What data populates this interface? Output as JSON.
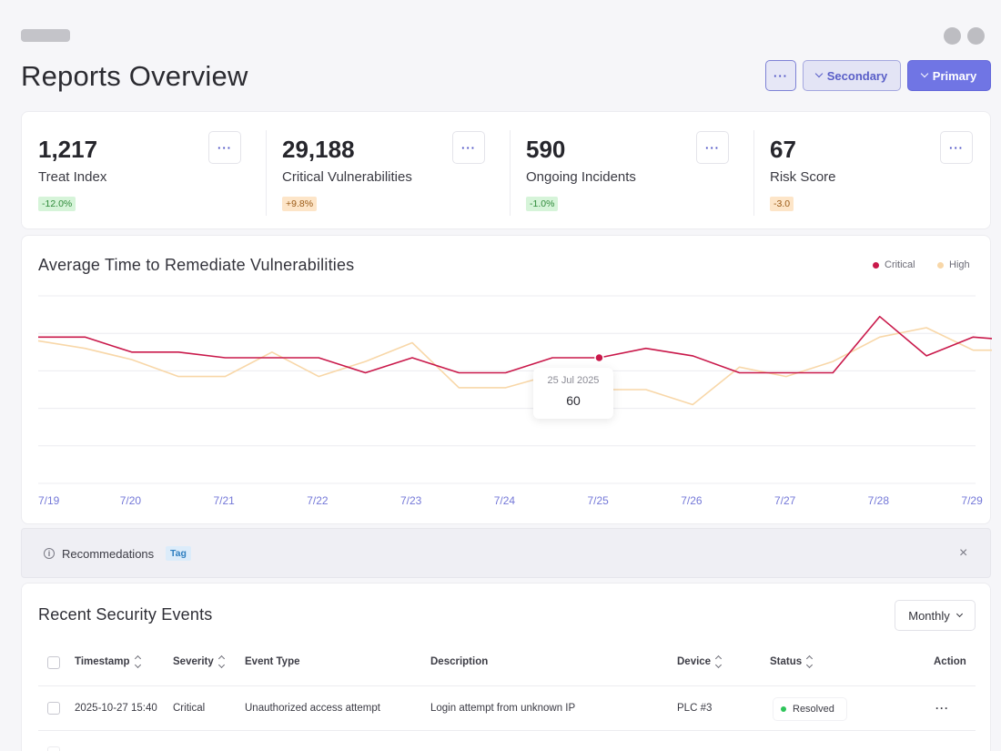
{
  "header": {
    "title": "Reports Overview",
    "more_label": "···",
    "secondary_label": "Secondary",
    "primary_label": "Primary"
  },
  "kpis": [
    {
      "value": "1,217",
      "label": "Treat Index",
      "delta": "-12.0%",
      "delta_tone": "green"
    },
    {
      "value": "29,188",
      "label": "Critical Vulnerabilities",
      "delta": "+9.8%",
      "delta_tone": "orange"
    },
    {
      "value": "590",
      "label": "Ongoing Incidents",
      "delta": "-1.0%",
      "delta_tone": "green"
    },
    {
      "value": "67",
      "label": "Risk Score",
      "delta": "-3.0",
      "delta_tone": "orange"
    }
  ],
  "chart": {
    "title": "Average Time to Remediate Vulnerabilities",
    "tooltip": {
      "date": "25 Jul 2025",
      "value": "60"
    }
  },
  "chart_data": {
    "type": "line",
    "title": "Average Time to Remediate Vulnerabilities",
    "x_ticks": [
      "7/19",
      "7/20",
      "7/21",
      "7/22",
      "7/23",
      "7/24",
      "7/25",
      "7/26",
      "7/27",
      "7/28",
      "7/29"
    ],
    "x": [
      0,
      0.5,
      1,
      1.5,
      2,
      2.5,
      3,
      3.5,
      4,
      4.5,
      5,
      5.5,
      6,
      6.5,
      7,
      7.5,
      8,
      8.5,
      9,
      9.5,
      10,
      10.5
    ],
    "ylim": [
      0,
      100
    ],
    "grid": true,
    "legend_position": "top-right",
    "series": [
      {
        "name": "Critical",
        "color": "#c9184a",
        "values": [
          78,
          78,
          70,
          70,
          67,
          67,
          67,
          59,
          67,
          59,
          59,
          67,
          67,
          72,
          68,
          59,
          59,
          59,
          89,
          68,
          78,
          76
        ]
      },
      {
        "name": "High",
        "color": "#f8d7a8",
        "values": [
          76,
          72,
          66,
          57,
          57,
          70,
          57,
          65,
          75,
          51,
          51,
          58,
          50,
          50,
          42,
          62,
          57,
          65,
          78,
          83,
          71,
          71
        ]
      }
    ]
  },
  "alert": {
    "icon": "info-icon",
    "text": "Recommedations",
    "tag": "Tag",
    "close": "×"
  },
  "events": {
    "title": "Recent Security Events",
    "filter_value": "Monthly",
    "columns": [
      "Timestamp",
      "Severity",
      "Event Type",
      "Description",
      "Device",
      "Status",
      "Action"
    ],
    "rows": [
      {
        "timestamp": "2025-10-27 15:40",
        "severity": "Critical",
        "event_type": "Unauthorized access attempt",
        "description": "Login attempt from unknown IP",
        "device": "PLC #3",
        "status": "Resolved",
        "status_color": "#2ec45a",
        "action": "···"
      }
    ]
  }
}
